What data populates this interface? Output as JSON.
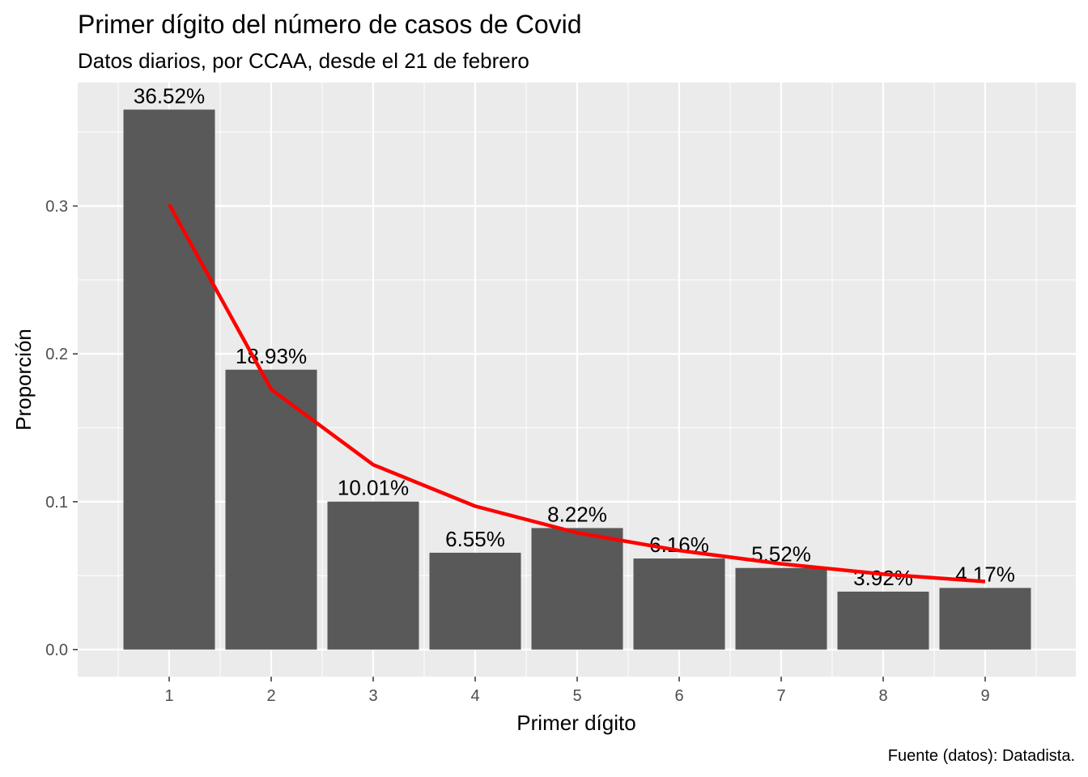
{
  "chart_data": {
    "type": "bar",
    "title": "Primer dígito del número de casos de Covid",
    "subtitle": "Datos diarios, por CCAA, desde el 21 de febrero",
    "xlabel": "Primer dígito",
    "ylabel": "Proporción",
    "caption": "Fuente (datos): Datadista.",
    "categories": [
      "1",
      "2",
      "3",
      "4",
      "5",
      "6",
      "7",
      "8",
      "9"
    ],
    "values": [
      0.3652,
      0.1893,
      0.1001,
      0.0655,
      0.0822,
      0.0616,
      0.0552,
      0.0392,
      0.0417
    ],
    "data_labels": [
      "36.52%",
      "18.93%",
      "10.01%",
      "6.55%",
      "8.22%",
      "6.16%",
      "5.52%",
      "3.92%",
      "4.17%"
    ],
    "line_series": {
      "color": "#ff0000",
      "values": [
        0.301,
        0.176,
        0.125,
        0.097,
        0.079,
        0.067,
        0.058,
        0.051,
        0.046
      ]
    },
    "y_ticks": [
      0.0,
      0.1,
      0.2,
      0.3
    ],
    "y_tick_labels": [
      "0.0",
      "0.1",
      "0.2",
      "0.3"
    ],
    "ylim": [
      -0.0183,
      0.3835
    ],
    "bar_color": "#595959",
    "panel_color": "#ebebeb",
    "grid": true,
    "legend": "none"
  }
}
